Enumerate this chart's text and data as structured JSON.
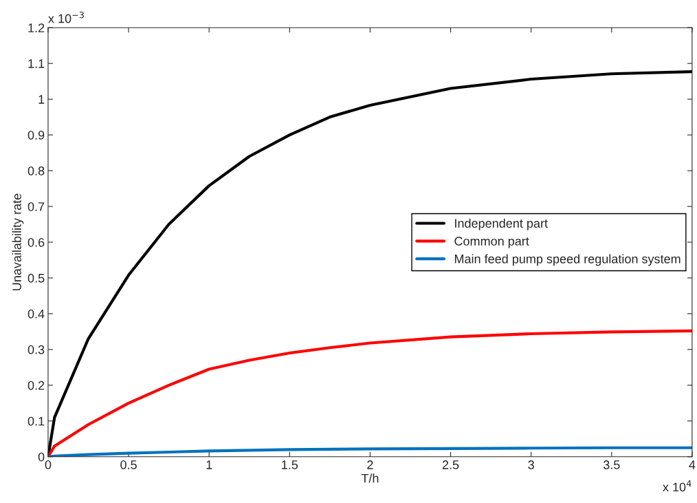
{
  "chart_data": {
    "type": "line",
    "xlabel": "T/h",
    "ylabel": "Unavailability rate",
    "annotations": [
      "x 10$^{−3}$",
      "x 10$^{4}$"
    ],
    "xlim": [
      0,
      4
    ],
    "xticks": [
      0,
      0.5,
      1,
      1.5,
      2,
      2.5,
      3,
      3.5,
      4
    ],
    "ylim": [
      0,
      1.2
    ],
    "yticks": [
      0,
      0.1,
      0.2,
      0.3,
      0.4,
      0.5,
      0.6,
      0.7,
      0.8,
      0.9,
      1,
      1.1,
      1.2
    ],
    "grid": false,
    "legend": "center right",
    "line_style": "solid",
    "marker": "none",
    "x": [
      0,
      0.04,
      0.25,
      0.5,
      0.75,
      1,
      1.25,
      1.5,
      1.75,
      2,
      2.5,
      3,
      3.5,
      4
    ],
    "series": [
      {
        "name": "Independent part",
        "color": "#000000",
        "values": [
          0,
          0.11,
          0.33,
          0.508,
          0.65,
          0.758,
          0.84,
          0.9,
          0.95,
          0.983,
          1.03,
          1.056,
          1.071,
          1.077
        ]
      },
      {
        "name": "Common part",
        "color": "#ff0000",
        "values": [
          0,
          0.03,
          0.09,
          0.15,
          0.2,
          0.245,
          0.27,
          0.29,
          0.305,
          0.318,
          0.335,
          0.344,
          0.349,
          0.352
        ]
      },
      {
        "name": "Main feed pump speed regulation system",
        "color": "#0072bd",
        "values": [
          0,
          0.002,
          0.006,
          0.01,
          0.013,
          0.016,
          0.018,
          0.02,
          0.021,
          0.022,
          0.023,
          0.024,
          0.025,
          0.025
        ]
      }
    ]
  }
}
